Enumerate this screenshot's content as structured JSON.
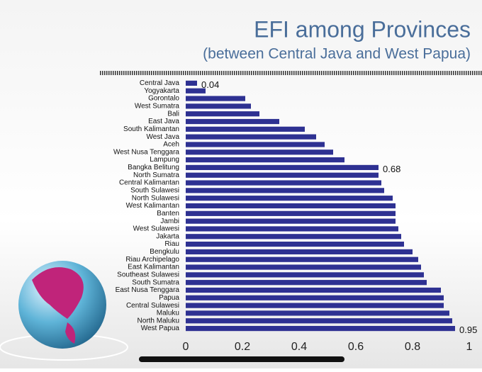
{
  "chart_data": {
    "type": "bar",
    "orientation": "horizontal",
    "title": "EFI among Provinces",
    "subtitle": "(between Central Java and West Papua)",
    "categories": [
      "Central Java",
      "Yogyakarta",
      "Gorontalo",
      "West Sumatra",
      "Bali",
      "East Java",
      "South Kalimantan",
      "West Java",
      "Aceh",
      "West Nusa Tenggara",
      "Lampung",
      "Bangka Belitung",
      "North Sumatra",
      "Central Kalimantan",
      "South Sulawesi",
      "North Sulawesi",
      "West Kalimantan",
      "Banten",
      "Jambi",
      "West Sulawesi",
      "Jakarta",
      "Riau",
      "Bengkulu",
      "Riau Archipelago",
      "East Kalimantan",
      "Southeast Sulawesi",
      "South Sumatra",
      "East Nusa Tenggara",
      "Papua",
      "Central Sulawesi",
      "Maluku",
      "North Maluku",
      "West Papua"
    ],
    "values": [
      0.04,
      0.07,
      0.21,
      0.23,
      0.26,
      0.33,
      0.42,
      0.46,
      0.49,
      0.52,
      0.56,
      0.68,
      0.68,
      0.69,
      0.7,
      0.73,
      0.74,
      0.74,
      0.74,
      0.75,
      0.76,
      0.77,
      0.8,
      0.82,
      0.83,
      0.84,
      0.85,
      0.9,
      0.91,
      0.91,
      0.93,
      0.94,
      0.95
    ],
    "value_labels": [
      "0.04",
      null,
      null,
      null,
      null,
      null,
      null,
      null,
      null,
      null,
      null,
      "0.68",
      null,
      null,
      null,
      null,
      null,
      null,
      null,
      null,
      null,
      null,
      null,
      null,
      null,
      null,
      null,
      null,
      null,
      null,
      null,
      null,
      "0.95"
    ],
    "color": "#2e3192",
    "xlim": [
      0,
      1
    ],
    "xticks": [
      0,
      0.2,
      0.4,
      0.6,
      0.8,
      1
    ],
    "grid": false
  }
}
